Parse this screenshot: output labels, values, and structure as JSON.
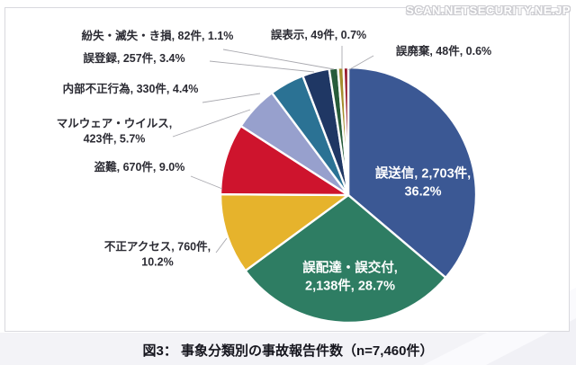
{
  "watermark": "SCAN.NETSECURITY.NE.JP",
  "caption": "図3： 事象分類別の事故報告件数（n=7,460件）",
  "chart_data": {
    "type": "pie",
    "title": "図3： 事象分類別の事故報告件数（n=7,460件）",
    "total_label": "n=7,460件",
    "total": 7460,
    "unit": "件",
    "start_angle_deg": 0,
    "direction": "clockwise",
    "slices": [
      {
        "label": "誤送信",
        "count": 2703,
        "pct": 36.2,
        "color": "#3b5894"
      },
      {
        "label": "誤配達・誤交付",
        "count": 2138,
        "pct": 28.7,
        "color": "#2e7d63"
      },
      {
        "label": "不正アクセス",
        "count": 760,
        "pct": 10.2,
        "color": "#e6b32c"
      },
      {
        "label": "盗難",
        "count": 670,
        "pct": 9.0,
        "color": "#ce142d"
      },
      {
        "label": "マルウェア・ウイルス",
        "count": 423,
        "pct": 5.7,
        "color": "#97a0cd"
      },
      {
        "label": "内部不正行為",
        "count": 330,
        "pct": 4.4,
        "color": "#2b7294"
      },
      {
        "label": "誤登録",
        "count": 257,
        "pct": 3.4,
        "color": "#1f3764"
      },
      {
        "label": "紛失・滅失・き損",
        "count": 82,
        "pct": 1.1,
        "color": "#275c3a"
      },
      {
        "label": "誤表示",
        "count": 49,
        "pct": 0.7,
        "color": "#a48d2d"
      },
      {
        "label": "誤廃棄",
        "count": 48,
        "pct": 0.6,
        "color": "#96192d"
      }
    ]
  },
  "labels": {
    "funshitsu": "紛失・滅失・き損, 82件, 1.1%",
    "gohyouji": "誤表示, 49件, 0.7%",
    "gohaiki": "誤廃棄, 48件, 0.6%",
    "gotouroku": "誤登録, 257件, 3.4%",
    "naibu": "内部不正行為, 330件, 4.4%",
    "malware_l1": "マルウェア・ウイルス,",
    "malware_l2": "423件, 5.7%",
    "tounan": "盗難, 670件, 9.0%",
    "fusei_l1": "不正アクセス, 760件,",
    "fusei_l2": "10.2%",
    "gosoushin_l1": "誤送信, 2,703件,",
    "gosoushin_l2": "36.2%",
    "gohaitatsu_l1": "誤配達・誤交付,",
    "gohaitatsu_l2": "2,138件, 28.7%"
  },
  "colors": {
    "leader_line": "#a9a9af",
    "chart_border": "#d9d9de",
    "label_text": "#2b2b33",
    "inner_label_text": "#ffffff",
    "caption_text": "#16161e"
  }
}
